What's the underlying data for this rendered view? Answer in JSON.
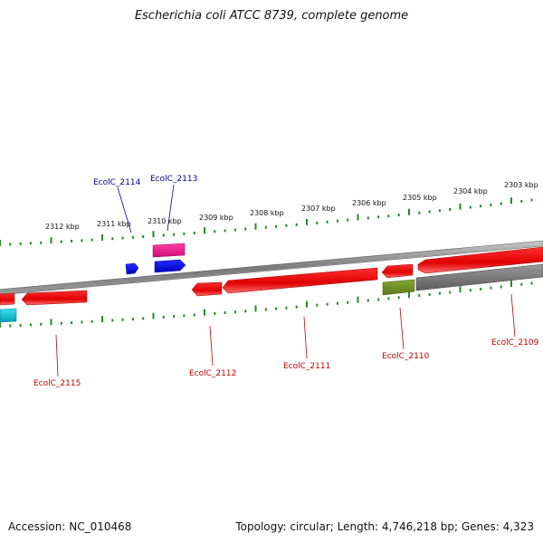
{
  "title": "Escherichia coli ATCC 8739, complete genome",
  "footer": {
    "accession": "Accession: NC_010468",
    "summary": "Topology: circular; Length: 4,746,218 bp; Genes: 4,323"
  },
  "colors": {
    "backbone": "#808080",
    "tick": "#228b22",
    "label_forward": "#00008b",
    "label_reverse": "#c00000",
    "gene_red": "#ff0000",
    "gene_blue": "#0000ee",
    "gene_magenta": "#ee1493",
    "gene_olive": "#6b8e23",
    "gene_cyan": "#00bcd4",
    "gene_gray": "#707070"
  },
  "scale_labels": [
    "2312 kbp",
    "2311 kbp",
    "2310 kbp",
    "2309 kbp",
    "2308 kbp",
    "2307 kbp",
    "2306 kbp",
    "2305 kbp",
    "2304 kbp",
    "2303 kbp"
  ],
  "gene_labels_top": [
    "EcolC_2114",
    "EcolC_2113"
  ],
  "gene_labels_bottom": [
    "EcolC_2115",
    "EcolC_2112",
    "EcolC_2111",
    "EcolC_2110",
    "EcolC_2109"
  ]
}
